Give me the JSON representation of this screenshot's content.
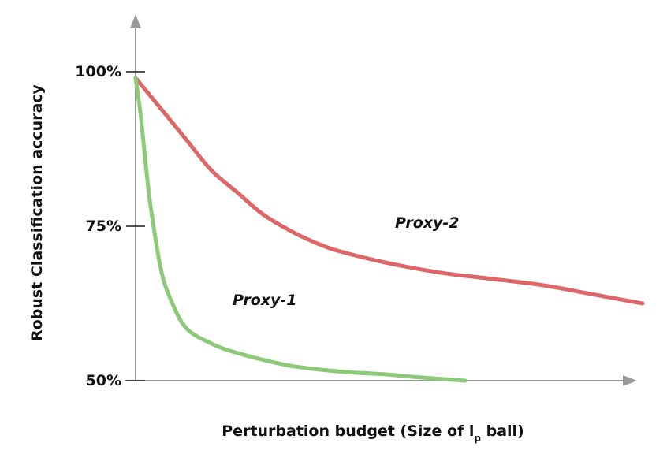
{
  "chart_data": {
    "type": "line",
    "title": "",
    "xlabel": "Perturbation budget (Size of l",
    "xlabel_subscript": "p",
    "xlabel_suffix": " ball)",
    "ylabel": "Robust Classification accuracy",
    "y_ticks": [
      {
        "value": 100,
        "label": "100%"
      },
      {
        "value": 75,
        "label": "75%"
      },
      {
        "value": 50,
        "label": "50%"
      }
    ],
    "ylim": [
      50,
      100
    ],
    "xlim": [
      0,
      1
    ],
    "grid": false,
    "legend": "none",
    "series": [
      {
        "name": "Proxy-2",
        "color": "#dd6668",
        "x": [
          0,
          0.05,
          0.1,
          0.15,
          0.2,
          0.25,
          0.3,
          0.35,
          0.4,
          0.5,
          0.6,
          0.7,
          0.8,
          0.9,
          1.0
        ],
        "y": [
          99,
          94,
          89,
          84,
          80.5,
          77,
          74.5,
          72.5,
          71,
          69,
          67.5,
          66.5,
          65.5,
          64,
          62.5
        ]
      },
      {
        "name": "Proxy-1",
        "color": "#8ec97a",
        "x": [
          0,
          0.01,
          0.02,
          0.03,
          0.05,
          0.07,
          0.1,
          0.15,
          0.2,
          0.3,
          0.4,
          0.5,
          0.55,
          0.6,
          0.65
        ],
        "y": [
          99,
          93,
          85,
          78,
          68,
          63,
          58.5,
          56,
          54.5,
          52.5,
          51.5,
          51,
          50.6,
          50.3,
          50
        ]
      }
    ]
  }
}
